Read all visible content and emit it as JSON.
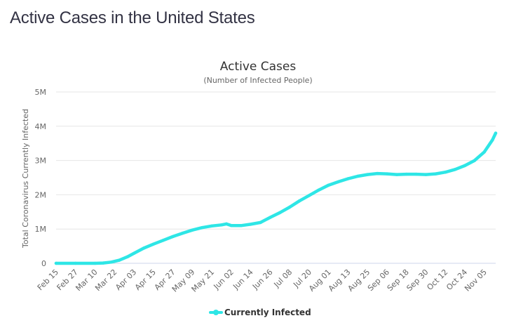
{
  "page": {
    "heading": "Active Cases in the United States"
  },
  "chart_data": {
    "type": "line",
    "title": "Active Cases",
    "subtitle": "(Number of Infected People)",
    "xlabel": "",
    "ylabel": "Total Coronavirus Currently Infected",
    "x_tick_labels": [
      "Feb 15",
      "Feb 27",
      "Mar 10",
      "Mar 22",
      "Apr 03",
      "Apr 15",
      "Apr 27",
      "May 09",
      "May 21",
      "Jun 02",
      "Jun 14",
      "Jun 26",
      "Jul 08",
      "Jul 20",
      "Aug 01",
      "Aug 13",
      "Aug 25",
      "Sep 06",
      "Sep 18",
      "Sep 30",
      "Oct 12",
      "Oct 24",
      "Nov 05"
    ],
    "y_ticks": [
      0,
      1000000,
      2000000,
      3000000,
      4000000,
      5000000
    ],
    "y_tick_labels": [
      "0",
      "1M",
      "2M",
      "3M",
      "4M",
      "5M"
    ],
    "ylim": [
      0,
      5000000
    ],
    "x_range": [
      "Feb 15",
      "Nov 12"
    ],
    "grid": true,
    "legend_position": "bottom-center",
    "colors": {
      "series": "#2ee6e6",
      "grid": "#e6e6e6",
      "axis": "#ccd6eb",
      "tick_text": "#666666"
    },
    "series": [
      {
        "name": "Currently Infected",
        "x": [
          "Feb 15",
          "Feb 27",
          "Mar 10",
          "Mar 15",
          "Mar 20",
          "Mar 25",
          "Mar 30",
          "Apr 03",
          "Apr 09",
          "Apr 15",
          "Apr 21",
          "Apr 27",
          "May 03",
          "May 09",
          "May 15",
          "May 21",
          "May 27",
          "May 30",
          "Jun 02",
          "Jun 08",
          "Jun 14",
          "Jun 20",
          "Jun 26",
          "Jul 02",
          "Jul 08",
          "Jul 14",
          "Jul 20",
          "Jul 26",
          "Aug 01",
          "Aug 07",
          "Aug 13",
          "Aug 19",
          "Aug 25",
          "Aug 31",
          "Sep 06",
          "Sep 12",
          "Sep 18",
          "Sep 24",
          "Sep 30",
          "Oct 06",
          "Oct 12",
          "Oct 18",
          "Oct 24",
          "Oct 30",
          "Nov 05",
          "Nov 10",
          "Nov 12"
        ],
        "values": [
          0,
          0,
          1000,
          8000,
          35000,
          90000,
          190000,
          290000,
          440000,
          560000,
          670000,
          780000,
          880000,
          970000,
          1040000,
          1090000,
          1120000,
          1150000,
          1100000,
          1100000,
          1140000,
          1190000,
          1340000,
          1480000,
          1640000,
          1820000,
          1980000,
          2140000,
          2280000,
          2380000,
          2470000,
          2540000,
          2590000,
          2620000,
          2610000,
          2590000,
          2600000,
          2600000,
          2590000,
          2610000,
          2660000,
          2740000,
          2850000,
          3000000,
          3250000,
          3600000,
          3800000
        ]
      }
    ]
  }
}
